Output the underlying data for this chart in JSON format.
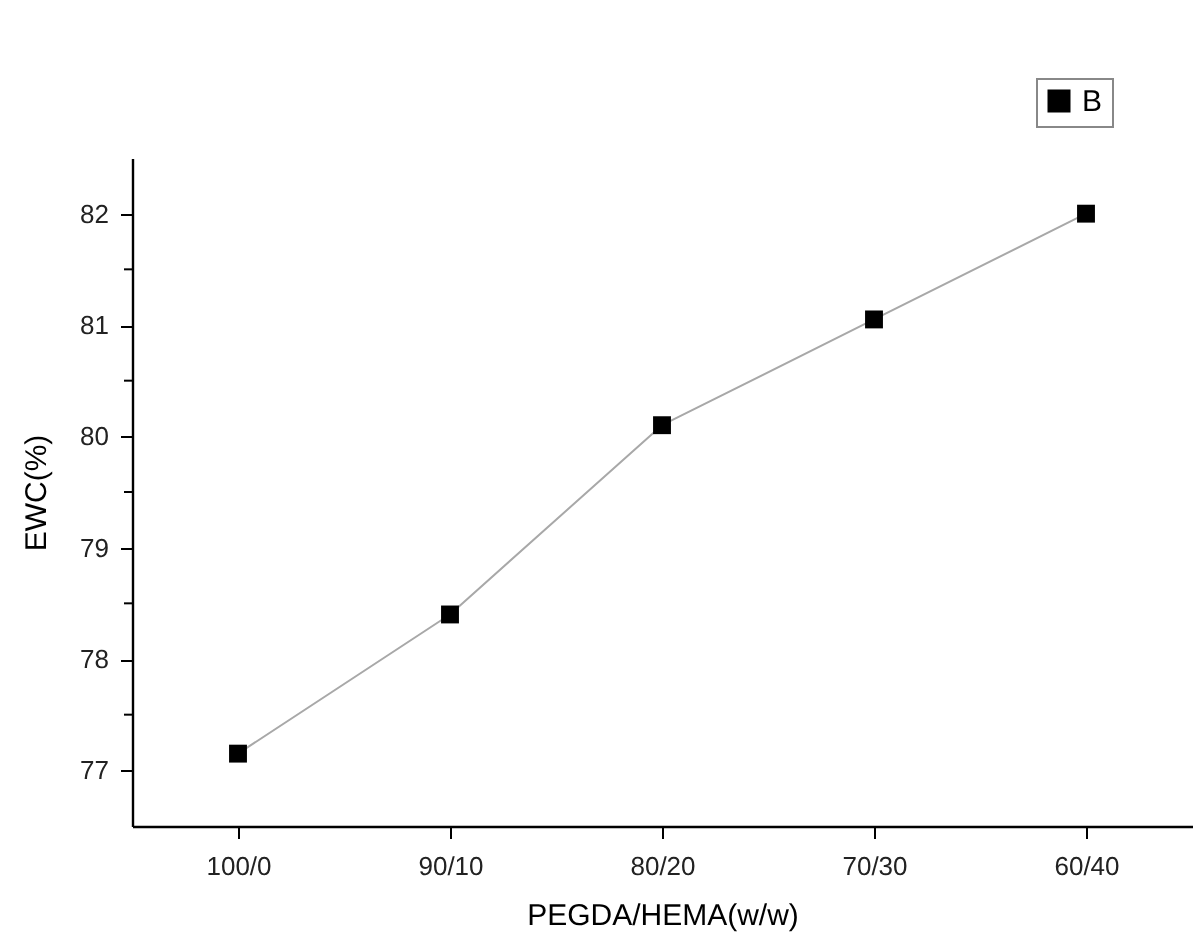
{
  "chart_data": {
    "type": "line",
    "xlabel": "PEGDA/HEMA(w/w)",
    "ylabel": "EWC(%)",
    "categories": [
      "100/0",
      "90/10",
      "80/20",
      "70/30",
      "60/40"
    ],
    "series": [
      {
        "name": "B",
        "color": "#000000",
        "values": [
          77.15,
          78.4,
          80.1,
          81.05,
          82.0
        ]
      }
    ],
    "ylim": [
      76.5,
      82.5
    ],
    "yticks": [
      77,
      {
        "value": 77.5,
        "label": null
      },
      78,
      {
        "value": 78.5,
        "label": null
      },
      79,
      {
        "value": 79.5,
        "label": null
      },
      80,
      {
        "value": 80.5,
        "label": null
      },
      81,
      {
        "value": 81.5,
        "label": null
      },
      82
    ],
    "marker": "square",
    "line_style": "solid",
    "grid": false,
    "legend": "top right"
  }
}
